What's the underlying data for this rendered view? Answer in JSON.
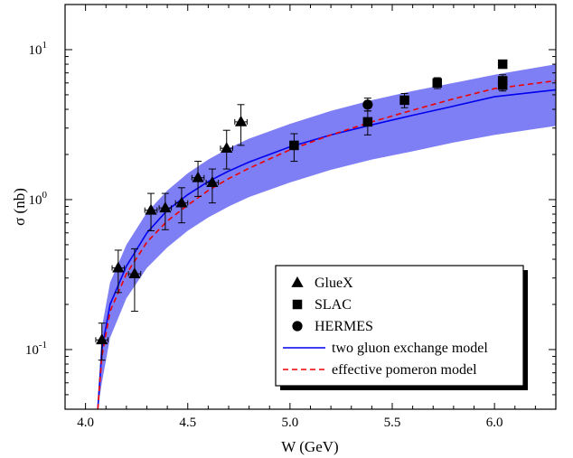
{
  "chart_data": {
    "type": "scatter",
    "xlabel": "W (GeV)",
    "ylabel": "σ (nb)",
    "xlim": [
      3.9,
      6.3
    ],
    "ylim": [
      0.04,
      20
    ],
    "yscale": "log",
    "grid": false,
    "legend_position": "bottom-right",
    "x_ticks": [
      {
        "value": 4.0,
        "label": "4.0"
      },
      {
        "value": 4.5,
        "label": "4.5"
      },
      {
        "value": 5.0,
        "label": "5.0"
      },
      {
        "value": 5.5,
        "label": "5.5"
      },
      {
        "value": 6.0,
        "label": "6.0"
      }
    ],
    "y_ticks": [
      {
        "value": 0.1,
        "base": "10",
        "exp": "-1"
      },
      {
        "value": 1,
        "base": "10",
        "exp": "0"
      },
      {
        "value": 10,
        "base": "10",
        "exp": "1"
      }
    ],
    "series": [
      {
        "name": "GlueX",
        "marker": "triangle",
        "color": "#000000",
        "points": [
          {
            "x": 4.08,
            "y": 0.116,
            "xerr": 0.03,
            "ylo": 0.085,
            "yhi": 0.15
          },
          {
            "x": 4.16,
            "y": 0.35,
            "xerr": 0.03,
            "ylo": 0.24,
            "yhi": 0.46
          },
          {
            "x": 4.24,
            "y": 0.32,
            "xerr": 0.03,
            "ylo": 0.18,
            "yhi": 0.47
          },
          {
            "x": 4.32,
            "y": 0.85,
            "xerr": 0.03,
            "ylo": 0.62,
            "yhi": 1.1
          },
          {
            "x": 4.39,
            "y": 0.88,
            "xerr": 0.03,
            "ylo": 0.63,
            "yhi": 1.1
          },
          {
            "x": 4.47,
            "y": 0.95,
            "xerr": 0.03,
            "ylo": 0.7,
            "yhi": 1.2
          },
          {
            "x": 4.55,
            "y": 1.4,
            "xerr": 0.03,
            "ylo": 1.05,
            "yhi": 1.8
          },
          {
            "x": 4.62,
            "y": 1.3,
            "xerr": 0.03,
            "ylo": 0.95,
            "yhi": 1.6
          },
          {
            "x": 4.69,
            "y": 2.2,
            "xerr": 0.03,
            "ylo": 1.6,
            "yhi": 2.9
          },
          {
            "x": 4.76,
            "y": 3.3,
            "xerr": 0.03,
            "ylo": 2.3,
            "yhi": 4.3
          }
        ]
      },
      {
        "name": "SLAC",
        "marker": "square",
        "color": "#000000",
        "points": [
          {
            "x": 5.02,
            "y": 2.3,
            "ylo": 1.8,
            "yhi": 2.75
          },
          {
            "x": 5.38,
            "y": 3.3,
            "ylo": 2.7,
            "yhi": 3.9
          },
          {
            "x": 5.56,
            "y": 4.6,
            "ylo": 4.1,
            "yhi": 5.1
          },
          {
            "x": 5.72,
            "y": 6.0,
            "ylo": 5.5,
            "yhi": 6.5
          },
          {
            "x": 6.04,
            "y": 8.0,
            "ylo": 7.7,
            "yhi": 8.3
          },
          {
            "x": 6.04,
            "y": 6.2,
            "ylo": 5.6,
            "yhi": 6.8
          },
          {
            "x": 6.04,
            "y": 5.8,
            "ylo": 5.3,
            "yhi": 6.3
          }
        ]
      },
      {
        "name": "HERMES",
        "marker": "circle",
        "color": "#000000",
        "points": [
          {
            "x": 5.38,
            "y": 4.3,
            "ylo": 3.9,
            "yhi": 4.75
          }
        ]
      },
      {
        "name": "two gluon exchange model",
        "type": "line",
        "style": "solid",
        "color": "#0000ee",
        "points": [
          {
            "x": 4.06,
            "y": 0.04
          },
          {
            "x": 4.08,
            "y": 0.1
          },
          {
            "x": 4.12,
            "y": 0.2
          },
          {
            "x": 4.2,
            "y": 0.36
          },
          {
            "x": 4.3,
            "y": 0.6
          },
          {
            "x": 4.4,
            "y": 0.85
          },
          {
            "x": 4.5,
            "y": 1.08
          },
          {
            "x": 4.6,
            "y": 1.32
          },
          {
            "x": 4.7,
            "y": 1.55
          },
          {
            "x": 4.8,
            "y": 1.78
          },
          {
            "x": 5.0,
            "y": 2.25
          },
          {
            "x": 5.2,
            "y": 2.7
          },
          {
            "x": 5.4,
            "y": 3.15
          },
          {
            "x": 5.6,
            "y": 3.65
          },
          {
            "x": 5.8,
            "y": 4.2
          },
          {
            "x": 6.0,
            "y": 4.85
          },
          {
            "x": 6.3,
            "y": 5.4
          }
        ]
      },
      {
        "name": "effective pomeron model",
        "type": "line",
        "style": "dashed",
        "color": "#ee0000",
        "points": [
          {
            "x": 4.06,
            "y": 0.04
          },
          {
            "x": 4.08,
            "y": 0.09
          },
          {
            "x": 4.12,
            "y": 0.18
          },
          {
            "x": 4.2,
            "y": 0.32
          },
          {
            "x": 4.3,
            "y": 0.52
          },
          {
            "x": 4.4,
            "y": 0.72
          },
          {
            "x": 4.5,
            "y": 0.92
          },
          {
            "x": 4.6,
            "y": 1.15
          },
          {
            "x": 4.7,
            "y": 1.38
          },
          {
            "x": 4.8,
            "y": 1.62
          },
          {
            "x": 5.0,
            "y": 2.15
          },
          {
            "x": 5.2,
            "y": 2.7
          },
          {
            "x": 5.4,
            "y": 3.3
          },
          {
            "x": 5.6,
            "y": 3.95
          },
          {
            "x": 5.8,
            "y": 4.7
          },
          {
            "x": 6.0,
            "y": 5.5
          },
          {
            "x": 6.3,
            "y": 6.2
          }
        ]
      }
    ],
    "band": {
      "color": "#7f7ff5",
      "upper": [
        {
          "x": 4.06,
          "y": 0.04
        },
        {
          "x": 4.08,
          "y": 0.14
        },
        {
          "x": 4.12,
          "y": 0.28
        },
        {
          "x": 4.2,
          "y": 0.5
        },
        {
          "x": 4.3,
          "y": 0.82
        },
        {
          "x": 4.4,
          "y": 1.15
        },
        {
          "x": 4.5,
          "y": 1.5
        },
        {
          "x": 4.6,
          "y": 1.85
        },
        {
          "x": 4.7,
          "y": 2.2
        },
        {
          "x": 4.8,
          "y": 2.55
        },
        {
          "x": 5.0,
          "y": 3.2
        },
        {
          "x": 5.2,
          "y": 3.9
        },
        {
          "x": 5.4,
          "y": 4.6
        },
        {
          "x": 5.6,
          "y": 5.3
        },
        {
          "x": 5.8,
          "y": 6.0
        },
        {
          "x": 6.0,
          "y": 6.8
        },
        {
          "x": 6.3,
          "y": 8.0
        }
      ],
      "lower": [
        {
          "x": 4.06,
          "y": 0.04
        },
        {
          "x": 4.08,
          "y": 0.06
        },
        {
          "x": 4.12,
          "y": 0.12
        },
        {
          "x": 4.2,
          "y": 0.22
        },
        {
          "x": 4.3,
          "y": 0.35
        },
        {
          "x": 4.4,
          "y": 0.48
        },
        {
          "x": 4.5,
          "y": 0.62
        },
        {
          "x": 4.6,
          "y": 0.76
        },
        {
          "x": 4.7,
          "y": 0.9
        },
        {
          "x": 4.8,
          "y": 1.04
        },
        {
          "x": 5.0,
          "y": 1.3
        },
        {
          "x": 5.2,
          "y": 1.58
        },
        {
          "x": 5.4,
          "y": 1.85
        },
        {
          "x": 5.6,
          "y": 2.1
        },
        {
          "x": 5.8,
          "y": 2.4
        },
        {
          "x": 6.0,
          "y": 2.7
        },
        {
          "x": 6.3,
          "y": 3.1
        }
      ]
    },
    "legend": [
      {
        "label": "GlueX",
        "marker": "triangle"
      },
      {
        "label": "SLAC",
        "marker": "square"
      },
      {
        "label": "HERMES",
        "marker": "circle"
      },
      {
        "label": "two gluon exchange model",
        "line": "solid",
        "color": "#0000ee"
      },
      {
        "label": "effective pomeron model",
        "line": "dashed",
        "color": "#ee0000"
      }
    ]
  }
}
